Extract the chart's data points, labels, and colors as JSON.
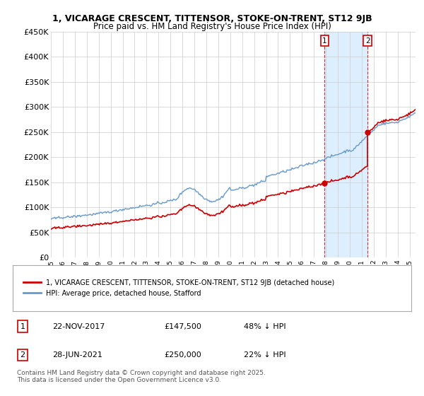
{
  "title_line1": "1, VICARAGE CRESCENT, TITTENSOR, STOKE-ON-TRENT, ST12 9JB",
  "title_line2": "Price paid vs. HM Land Registry's House Price Index (HPI)",
  "ylim": [
    0,
    450000
  ],
  "yticks": [
    0,
    50000,
    100000,
    150000,
    200000,
    250000,
    300000,
    350000,
    400000,
    450000
  ],
  "ytick_labels": [
    "£0",
    "£50K",
    "£100K",
    "£150K",
    "£200K",
    "£250K",
    "£300K",
    "£350K",
    "£400K",
    "£450K"
  ],
  "xlim_start": 1995.0,
  "xlim_end": 2025.5,
  "xticks": [
    1995,
    1996,
    1997,
    1998,
    1999,
    2000,
    2001,
    2002,
    2003,
    2004,
    2005,
    2006,
    2007,
    2008,
    2009,
    2010,
    2011,
    2012,
    2013,
    2014,
    2015,
    2016,
    2017,
    2018,
    2019,
    2020,
    2021,
    2022,
    2023,
    2024,
    2025
  ],
  "purchase1_x": 2017.9,
  "purchase1_y": 147500,
  "purchase1_date": "22-NOV-2017",
  "purchase1_price": "£147,500",
  "purchase1_hpi": "48% ↓ HPI",
  "purchase2_x": 2021.5,
  "purchase2_y": 250000,
  "purchase2_date": "28-JUN-2021",
  "purchase2_price": "£250,000",
  "purchase2_hpi": "22% ↓ HPI",
  "red_color": "#cc0000",
  "blue_color": "#6699cc",
  "shade_color": "#ddeeff",
  "background_color": "#ffffff",
  "grid_color": "#cccccc",
  "legend_label_red": "1, VICARAGE CRESCENT, TITTENSOR, STOKE-ON-TRENT, ST12 9JB (detached house)",
  "legend_label_blue": "HPI: Average price, detached house, Stafford",
  "footer": "Contains HM Land Registry data © Crown copyright and database right 2025.\nThis data is licensed under the Open Government Licence v3.0."
}
